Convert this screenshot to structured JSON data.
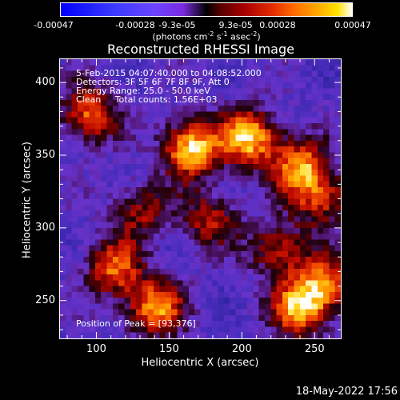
{
  "chart_data": {
    "type": "heatmap",
    "title": "Reconstructed RHESSI Image",
    "xlabel": "Heliocentric X (arcsec)",
    "ylabel": "Heliocentric Y (arcsec)",
    "xlim": [
      75,
      268
    ],
    "ylim": [
      224,
      416
    ],
    "xticks": [
      100,
      150,
      200,
      250
    ],
    "yticks": [
      250,
      300,
      350,
      400
    ],
    "colormap": "blue-purple-black-red-yellow-white",
    "colorbar": {
      "ticks": [
        "-0.00047",
        "-0.00028",
        "-9.3e-05",
        "9.3e-05",
        "0.00028",
        "0.00047"
      ],
      "unit_prefix": "(photons cm",
      "unit_exp1": "-2",
      "unit_mid": " s",
      "unit_exp2": "-1",
      "unit_mid2": " asec",
      "unit_exp3": "-2",
      "unit_suffix": ")"
    },
    "annotations": [
      "5-Feb-2015 04:07:40.000 to 04:08:52.000",
      "Detectors: 3F 5F 6F 7F 8F 9F, Att 0",
      "Energy Range: 25.0 - 50.0 keV",
      "Clean     Total counts: 1.56E+03"
    ],
    "peak_text": "Position of Peak = [93,376]",
    "peak": [
      93,
      376
    ],
    "bright_sources": [
      {
        "x": 95,
        "y": 378,
        "level": 0.75
      },
      {
        "x": 165,
        "y": 355,
        "level": 1.0
      },
      {
        "x": 205,
        "y": 362,
        "level": 0.95
      },
      {
        "x": 240,
        "y": 342,
        "level": 0.8
      },
      {
        "x": 255,
        "y": 320,
        "level": 0.6
      },
      {
        "x": 178,
        "y": 305,
        "level": 0.55
      },
      {
        "x": 130,
        "y": 312,
        "level": 0.5
      },
      {
        "x": 112,
        "y": 272,
        "level": 0.7
      },
      {
        "x": 140,
        "y": 245,
        "level": 0.85
      },
      {
        "x": 225,
        "y": 285,
        "level": 0.6
      },
      {
        "x": 240,
        "y": 245,
        "level": 0.9
      },
      {
        "x": 258,
        "y": 262,
        "level": 0.65
      }
    ]
  },
  "footer": {
    "timestamp": "18-May-2022 17:56"
  }
}
